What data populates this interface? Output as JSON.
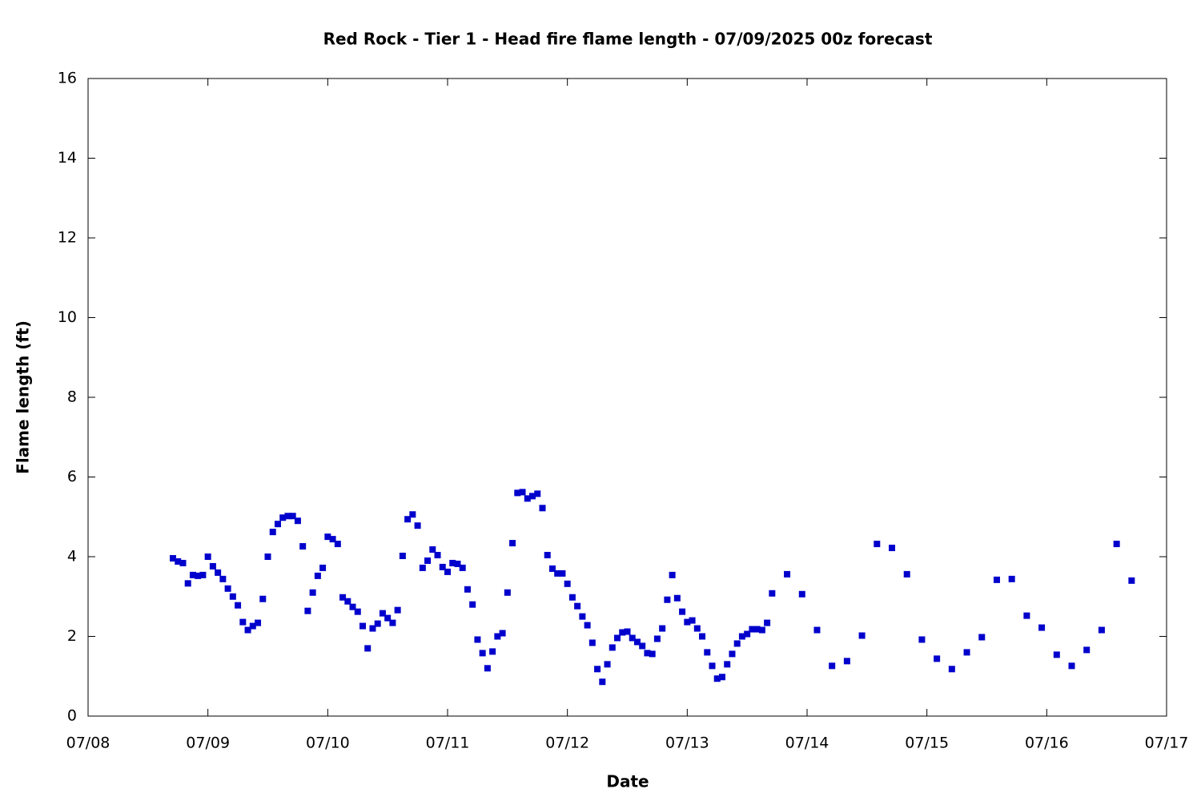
{
  "chart_data": {
    "type": "scatter",
    "title": "Red Rock - Tier 1 - Head fire flame length - 07/09/2025 00z forecast",
    "x_label": "Date",
    "y_label": "Flame length (ft)",
    "color": "#0000cc",
    "xlim": [
      8,
      17
    ],
    "xticks": [
      {
        "value": 8,
        "label": "07/08"
      },
      {
        "value": 9,
        "label": "07/09"
      },
      {
        "value": 10,
        "label": "07/10"
      },
      {
        "value": 11,
        "label": "07/11"
      },
      {
        "value": 12,
        "label": "07/12"
      },
      {
        "value": 13,
        "label": "07/13"
      },
      {
        "value": 14,
        "label": "07/14"
      },
      {
        "value": 15,
        "label": "07/15"
      },
      {
        "value": 16,
        "label": "07/16"
      },
      {
        "value": 17,
        "label": "07/17"
      }
    ],
    "ylim": [
      0,
      16
    ],
    "yticks": [
      0,
      2,
      4,
      6,
      8,
      10,
      12,
      14,
      16
    ],
    "x": [
      8.7083,
      8.75,
      8.7917,
      8.8333,
      8.875,
      8.9167,
      8.9583,
      9,
      9.0417,
      9.0833,
      9.125,
      9.1667,
      9.2083,
      9.25,
      9.2917,
      9.3333,
      9.375,
      9.4167,
      9.4583,
      9.5,
      9.5417,
      9.5833,
      9.625,
      9.6667,
      9.7083,
      9.75,
      9.7917,
      9.8333,
      9.875,
      9.9167,
      9.9583,
      10,
      10.0417,
      10.0833,
      10.125,
      10.1667,
      10.2083,
      10.25,
      10.2917,
      10.3333,
      10.375,
      10.4167,
      10.4583,
      10.5,
      10.5417,
      10.5833,
      10.625,
      10.6667,
      10.7083,
      10.75,
      10.7917,
      10.8333,
      10.875,
      10.9167,
      10.9583,
      11,
      11.0417,
      11.0833,
      11.125,
      11.1667,
      11.2083,
      11.25,
      11.2917,
      11.3333,
      11.375,
      11.4167,
      11.4583,
      11.5,
      11.5417,
      11.5833,
      11.625,
      11.6667,
      11.7083,
      11.75,
      11.7917,
      11.8333,
      11.875,
      11.9167,
      11.9583,
      12,
      12.0417,
      12.0833,
      12.125,
      12.1667,
      12.2083,
      12.25,
      12.2917,
      12.3333,
      12.375,
      12.4167,
      12.4583,
      12.5,
      12.5417,
      12.5833,
      12.625,
      12.6667,
      12.7083,
      12.75,
      12.7917,
      12.8333,
      12.875,
      12.9167,
      12.9583,
      13,
      13.0417,
      13.0833,
      13.125,
      13.1667,
      13.2083,
      13.25,
      13.2917,
      13.3333,
      13.375,
      13.4167,
      13.4583,
      13.5,
      13.5417,
      13.5833,
      13.625,
      13.6667,
      13.7083,
      13.8333,
      13.9583,
      14.0833,
      14.2083,
      14.3333,
      14.4583,
      14.5833,
      14.7083,
      14.8333,
      14.9583,
      15.0833,
      15.2083,
      15.3333,
      15.4583,
      15.5833,
      15.7083,
      15.8333,
      15.9583,
      16.0833,
      16.2083,
      16.3333,
      16.4583,
      16.5833,
      16.7083
    ],
    "values": [
      3.96,
      3.88,
      3.84,
      3.33,
      3.54,
      3.52,
      3.54,
      4.0,
      3.76,
      3.6,
      3.44,
      3.2,
      3.0,
      2.78,
      2.36,
      2.16,
      2.26,
      2.34,
      2.94,
      4.0,
      4.62,
      4.82,
      4.98,
      5.02,
      5.02,
      4.9,
      4.26,
      2.64,
      3.1,
      3.52,
      3.72,
      4.5,
      4.44,
      4.32,
      2.98,
      2.88,
      2.74,
      2.62,
      2.26,
      1.7,
      2.2,
      2.32,
      2.58,
      2.46,
      2.34,
      2.66,
      4.02,
      4.94,
      5.06,
      4.78,
      3.72,
      3.9,
      4.18,
      4.04,
      3.74,
      3.62,
      3.84,
      3.82,
      3.72,
      3.18,
      2.8,
      1.92,
      1.58,
      1.2,
      1.62,
      2.0,
      2.08,
      3.1,
      4.34,
      5.6,
      5.62,
      5.46,
      5.52,
      5.58,
      5.22,
      4.04,
      3.7,
      3.58,
      3.58,
      3.32,
      2.98,
      2.76,
      2.5,
      2.28,
      1.84,
      1.18,
      0.86,
      1.3,
      1.72,
      1.96,
      2.1,
      2.12,
      1.96,
      1.86,
      1.76,
      1.58,
      1.56,
      1.94,
      2.2,
      2.92,
      3.54,
      2.96,
      2.62,
      2.36,
      2.4,
      2.2,
      2.0,
      1.6,
      1.26,
      0.94,
      0.98,
      1.3,
      1.56,
      1.82,
      2.0,
      2.06,
      2.18,
      2.18,
      2.16,
      2.34,
      3.08,
      3.56,
      3.06,
      2.16,
      1.26,
      1.38,
      2.02,
      4.32,
      4.22,
      3.56,
      1.92,
      1.44,
      1.18,
      1.6,
      1.98,
      3.42,
      3.44,
      2.52,
      2.22,
      1.54,
      1.26,
      1.66,
      2.16,
      4.32,
      3.4
    ]
  }
}
